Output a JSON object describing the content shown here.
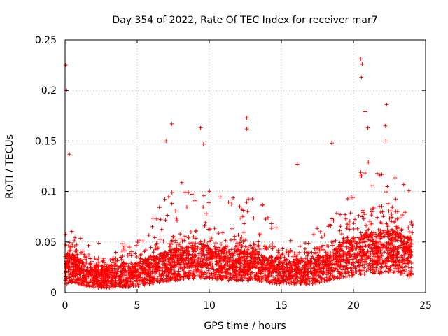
{
  "chart_data": {
    "type": "scatter",
    "title": "Day 354 of 2022, Rate Of TEC Index for receiver mar7",
    "xlabel": "GPS time / hours",
    "ylabel": "ROTI / TECUs",
    "xlim": [
      0,
      25
    ],
    "ylim": [
      0,
      0.25
    ],
    "x_ticks": [
      "0",
      "5",
      "10",
      "15",
      "20",
      "25"
    ],
    "y_ticks": [
      "0",
      "0.05",
      "0.1",
      "0.15",
      "0.2",
      "0.25"
    ],
    "grid": true,
    "marker": "+",
    "series_color": "#ff0000",
    "x_range_observed": [
      0,
      24.1
    ],
    "notable_points": [
      {
        "x": 0.05,
        "y": 0.225
      },
      {
        "x": 0.1,
        "y": 0.2
      },
      {
        "x": 0.3,
        "y": 0.137
      },
      {
        "x": 7.0,
        "y": 0.15
      },
      {
        "x": 7.4,
        "y": 0.167
      },
      {
        "x": 9.4,
        "y": 0.163
      },
      {
        "x": 9.6,
        "y": 0.147
      },
      {
        "x": 12.6,
        "y": 0.173
      },
      {
        "x": 12.6,
        "y": 0.162
      },
      {
        "x": 16.1,
        "y": 0.127
      },
      {
        "x": 18.5,
        "y": 0.148
      },
      {
        "x": 20.5,
        "y": 0.231
      },
      {
        "x": 20.6,
        "y": 0.226
      },
      {
        "x": 20.55,
        "y": 0.213
      },
      {
        "x": 20.8,
        "y": 0.179
      },
      {
        "x": 21.0,
        "y": 0.163
      },
      {
        "x": 22.3,
        "y": 0.186
      },
      {
        "x": 22.2,
        "y": 0.165
      },
      {
        "x": 22.25,
        "y": 0.15
      }
    ],
    "envelope": [
      {
        "x": 0.0,
        "base": 0.018,
        "spread": 0.035,
        "peak": 0.09
      },
      {
        "x": 0.5,
        "base": 0.02,
        "spread": 0.028,
        "peak": 0.06
      },
      {
        "x": 1.5,
        "base": 0.015,
        "spread": 0.02,
        "peak": 0.05
      },
      {
        "x": 3.0,
        "base": 0.014,
        "spread": 0.02,
        "peak": 0.05
      },
      {
        "x": 5.0,
        "base": 0.016,
        "spread": 0.022,
        "peak": 0.05
      },
      {
        "x": 6.5,
        "base": 0.02,
        "spread": 0.03,
        "peak": 0.085
      },
      {
        "x": 7.5,
        "base": 0.022,
        "spread": 0.035,
        "peak": 0.11
      },
      {
        "x": 9.5,
        "base": 0.024,
        "spread": 0.04,
        "peak": 0.11
      },
      {
        "x": 11.0,
        "base": 0.022,
        "spread": 0.036,
        "peak": 0.1
      },
      {
        "x": 13.0,
        "base": 0.022,
        "spread": 0.032,
        "peak": 0.1
      },
      {
        "x": 15.0,
        "base": 0.018,
        "spread": 0.026,
        "peak": 0.07
      },
      {
        "x": 17.0,
        "base": 0.018,
        "spread": 0.022,
        "peak": 0.06
      },
      {
        "x": 18.5,
        "base": 0.022,
        "spread": 0.032,
        "peak": 0.08
      },
      {
        "x": 19.5,
        "base": 0.025,
        "spread": 0.045,
        "peak": 0.1
      },
      {
        "x": 21.0,
        "base": 0.028,
        "spread": 0.055,
        "peak": 0.13
      },
      {
        "x": 22.5,
        "base": 0.03,
        "spread": 0.06,
        "peak": 0.13
      },
      {
        "x": 24.1,
        "base": 0.025,
        "spread": 0.045,
        "peak": 0.1
      }
    ]
  }
}
